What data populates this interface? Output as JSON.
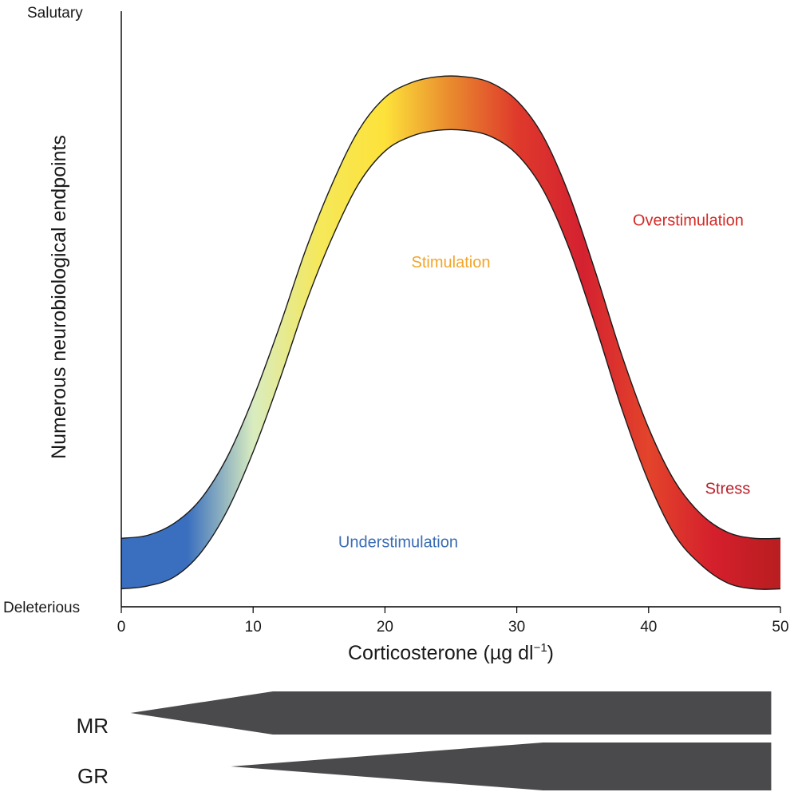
{
  "chart_data": {
    "type": "area",
    "xlabel_prefix": "Corticosterone (",
    "xlabel_unit": "µg dl",
    "xlabel_sup": "−1",
    "xlabel_suffix": ")",
    "ylabel": "Numerous neurobiological endpoints",
    "y_top_label": "Salutary",
    "y_bottom_label": "Deleterious",
    "xlim": [
      0,
      50
    ],
    "xticks": [
      0,
      10,
      20,
      30,
      40,
      50
    ],
    "ylim": [
      0,
      100
    ],
    "grid": false,
    "band": {
      "x": [
        0,
        2,
        4,
        6,
        8,
        10,
        12,
        14,
        16,
        18,
        20,
        22,
        24,
        26,
        28,
        30,
        32,
        34,
        36,
        38,
        40,
        42,
        44,
        46,
        48,
        50
      ],
      "upper": [
        11.5,
        12,
        14,
        18,
        25,
        35,
        47,
        60,
        71,
        80,
        85.5,
        88,
        89,
        89,
        88,
        85,
        79,
        69,
        56,
        42,
        30,
        21,
        15.5,
        12.5,
        11.5,
        11.5
      ],
      "lower": [
        3,
        3.5,
        5,
        9,
        16,
        26,
        38,
        51,
        62,
        71,
        76.5,
        79,
        80,
        80,
        79,
        76,
        70,
        60,
        47,
        33,
        21,
        12,
        7,
        4,
        3,
        3
      ]
    },
    "colors": {
      "gradient": [
        "#3a6fbf",
        "#3a6fbf",
        "#d9ecc0",
        "#f5e85a",
        "#fde23a",
        "#e98a2e",
        "#df3a2c",
        "#d42130",
        "#e3442b",
        "#d41f2c",
        "#b81e20"
      ],
      "understimulation": "#3b6db5",
      "stimulation": "#f2a52a",
      "overstimulation": "#d42a26",
      "stress": "#b8202a",
      "receptor_bar": "#4a4a4c"
    },
    "annotations": [
      {
        "id": "understimulation",
        "text": "Understimulation",
        "x": 21,
        "y": 10
      },
      {
        "id": "stimulation",
        "text": "Stimulation",
        "x": 25,
        "y": 57
      },
      {
        "id": "overstimulation",
        "text": "Overstimulation",
        "x": 43,
        "y": 64
      },
      {
        "id": "stress",
        "text": "Stress",
        "x": 46,
        "y": 19
      }
    ],
    "receptors": [
      {
        "name": "MR",
        "start": 0.7,
        "full_from": 11.5,
        "end": 49.3
      },
      {
        "name": "GR",
        "start": 8.3,
        "full_from": 32,
        "end": 49.3
      }
    ]
  }
}
